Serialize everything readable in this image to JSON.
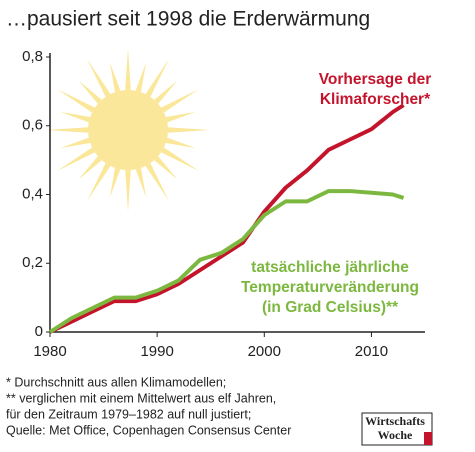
{
  "chart_data": {
    "type": "line",
    "title": "…pausiert seit 1998 die Erderwärmung",
    "x": [
      1980,
      1982,
      1984,
      1986,
      1988,
      1990,
      1992,
      1994,
      1996,
      1998,
      2000,
      2002,
      2004,
      2006,
      2008,
      2010,
      2012,
      2013
    ],
    "series": [
      {
        "label": [
          "Vorhersage der",
          "Klimaforscher*"
        ],
        "color": "#c4142c",
        "values": [
          0,
          0.03,
          0.06,
          0.09,
          0.09,
          0.11,
          0.14,
          0.18,
          0.22,
          0.26,
          0.35,
          0.42,
          0.47,
          0.53,
          0.56,
          0.59,
          0.64,
          0.66
        ]
      },
      {
        "label": [
          "tatsächliche jährliche",
          "Temperaturveränderung",
          "(in Grad Celsius)**"
        ],
        "color": "#7cb83f",
        "values": [
          0,
          0.04,
          0.07,
          0.1,
          0.1,
          0.12,
          0.15,
          0.21,
          0.23,
          0.27,
          0.34,
          0.38,
          0.38,
          0.41,
          0.41,
          0.405,
          0.4,
          0.39
        ]
      }
    ],
    "xlim": [
      1980,
      2015
    ],
    "xticks": [
      1980,
      1990,
      2000,
      2010
    ],
    "ylim": [
      0,
      0.8
    ],
    "yticks": [
      0,
      {
        "value": 0.2,
        "label": "0,2"
      },
      {
        "value": 0.4,
        "label": "0,4"
      },
      {
        "value": 0.6,
        "label": "0,6"
      },
      {
        "value": 0.8,
        "label": "0,8"
      }
    ],
    "grid": false,
    "footnotes": [
      "* Durchschnitt aus allen Klimamodellen;",
      "** verglichen mit einem Mittelwert aus elf Jahren,",
      "für den Zeitraum 1979–1982 auf null justiert;",
      "Quelle: Met Office, Copenhagen Consensus Center"
    ],
    "logo": [
      "Wirtschafts",
      "Woche"
    ]
  }
}
